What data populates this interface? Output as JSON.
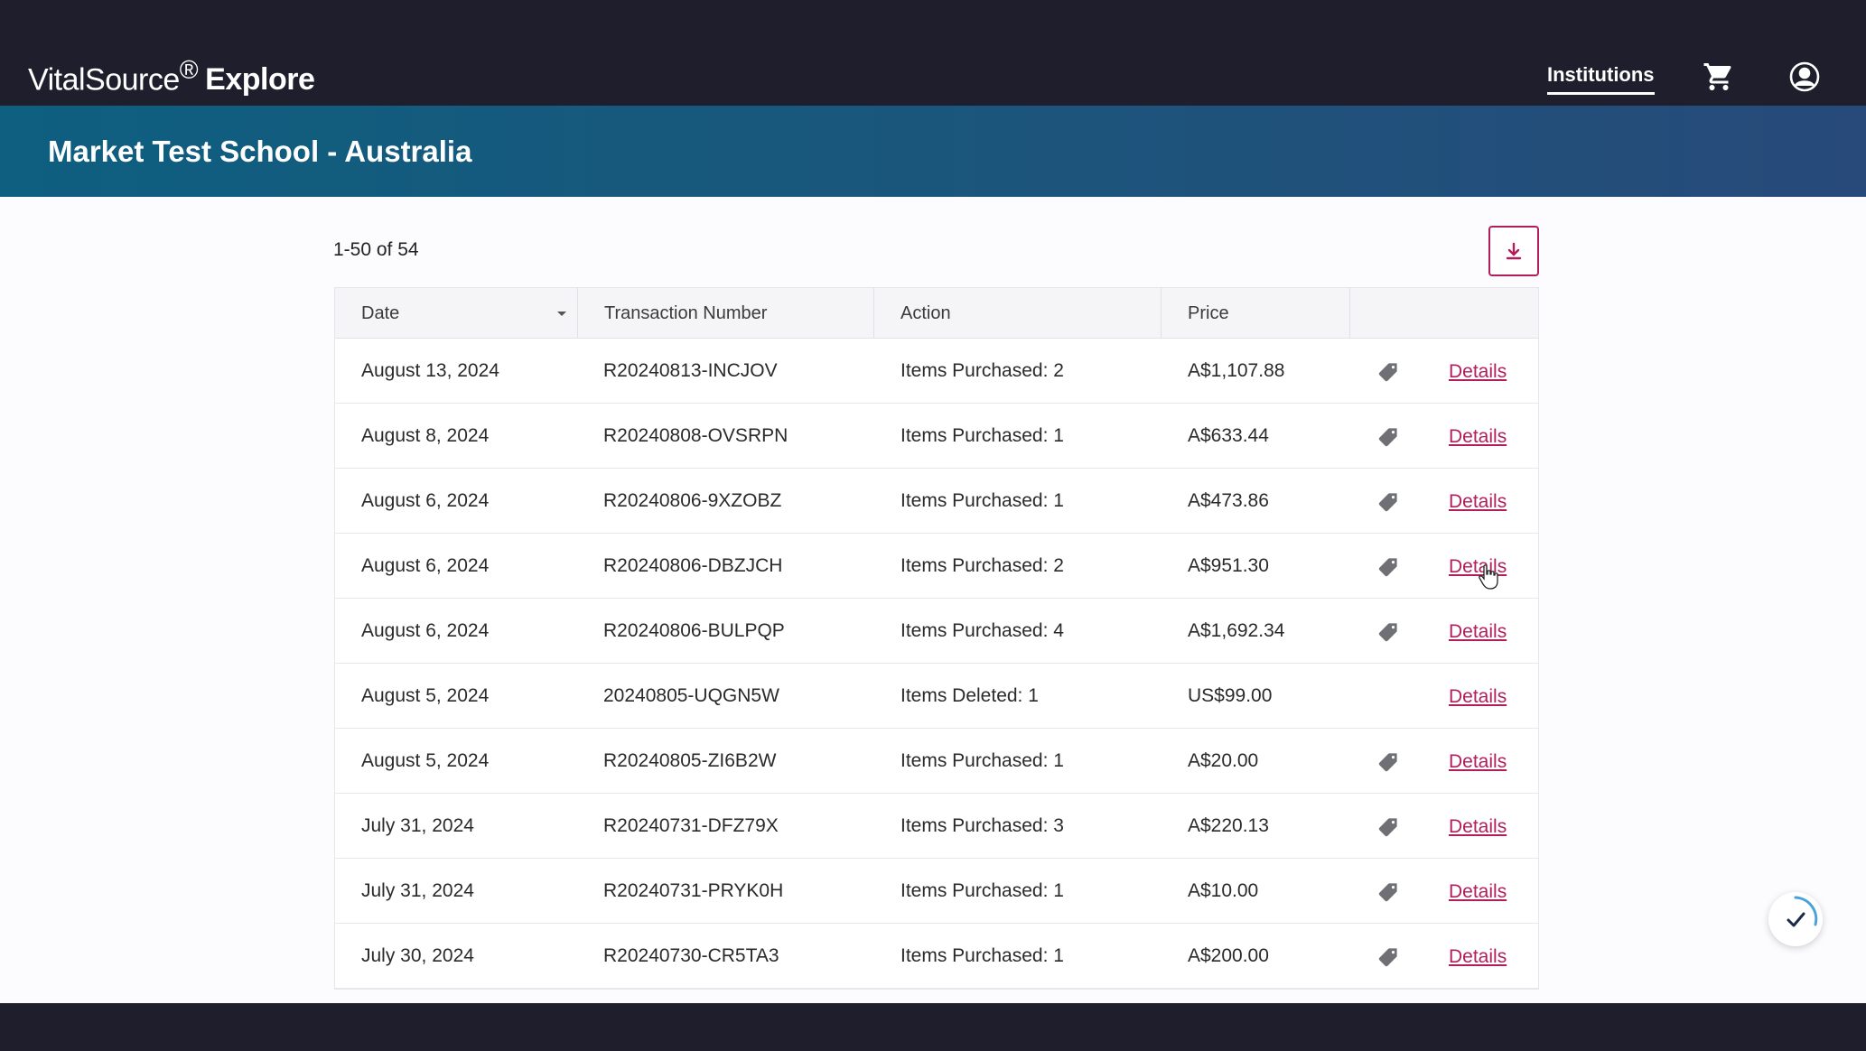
{
  "header": {
    "logo_brand": "VitalSource",
    "logo_reg": "®",
    "logo_product": "Explore",
    "nav_institutions": "Institutions",
    "cart_icon": "shopping-cart-icon",
    "account_icon": "user-circle-icon"
  },
  "banner": {
    "title": "Market Test School - Australia"
  },
  "list": {
    "count_text": "1-50 of 54",
    "download_icon": "download-icon"
  },
  "table": {
    "columns": [
      "Date",
      "Transaction Number",
      "Action",
      "Price",
      ""
    ],
    "sort_column": "Date",
    "rows": [
      {
        "date": "August 13, 2024",
        "txn": "R20240813-INCJOV",
        "action": "Items Purchased: 2",
        "price": "A$1,107.88",
        "tag": true,
        "link": "Details"
      },
      {
        "date": "August 8, 2024",
        "txn": "R20240808-OVSRPN",
        "action": "Items Purchased: 1",
        "price": "A$633.44",
        "tag": true,
        "link": "Details"
      },
      {
        "date": "August 6, 2024",
        "txn": "R20240806-9XZOBZ",
        "action": "Items Purchased: 1",
        "price": "A$473.86",
        "tag": true,
        "link": "Details"
      },
      {
        "date": "August 6, 2024",
        "txn": "R20240806-DBZJCH",
        "action": "Items Purchased: 2",
        "price": "A$951.30",
        "tag": true,
        "link": "Details"
      },
      {
        "date": "August 6, 2024",
        "txn": "R20240806-BULPQP",
        "action": "Items Purchased: 4",
        "price": "A$1,692.34",
        "tag": true,
        "link": "Details"
      },
      {
        "date": "August 5, 2024",
        "txn": "20240805-UQGN5W",
        "action": "Items Deleted: 1",
        "price": "US$99.00",
        "tag": false,
        "link": "Details"
      },
      {
        "date": "August 5, 2024",
        "txn": "R20240805-ZI6B2W",
        "action": "Items Purchased: 1",
        "price": "A$20.00",
        "tag": true,
        "link": "Details"
      },
      {
        "date": "July 31, 2024",
        "txn": "R20240731-DFZ79X",
        "action": "Items Purchased: 3",
        "price": "A$220.13",
        "tag": true,
        "link": "Details"
      },
      {
        "date": "July 31, 2024",
        "txn": "R20240731-PRYK0H",
        "action": "Items Purchased: 1",
        "price": "A$10.00",
        "tag": true,
        "link": "Details"
      },
      {
        "date": "July 30, 2024",
        "txn": "R20240730-CR5TA3",
        "action": "Items Purchased: 1",
        "price": "A$200.00",
        "tag": true,
        "link": "Details"
      }
    ]
  },
  "colors": {
    "accent": "#b21d5c",
    "topbar": "#1e1e2c",
    "banner_start": "#0e5f80",
    "banner_end": "#274a7a"
  },
  "status_icon": "check-icon",
  "tag_icon": "price-tag-icon"
}
